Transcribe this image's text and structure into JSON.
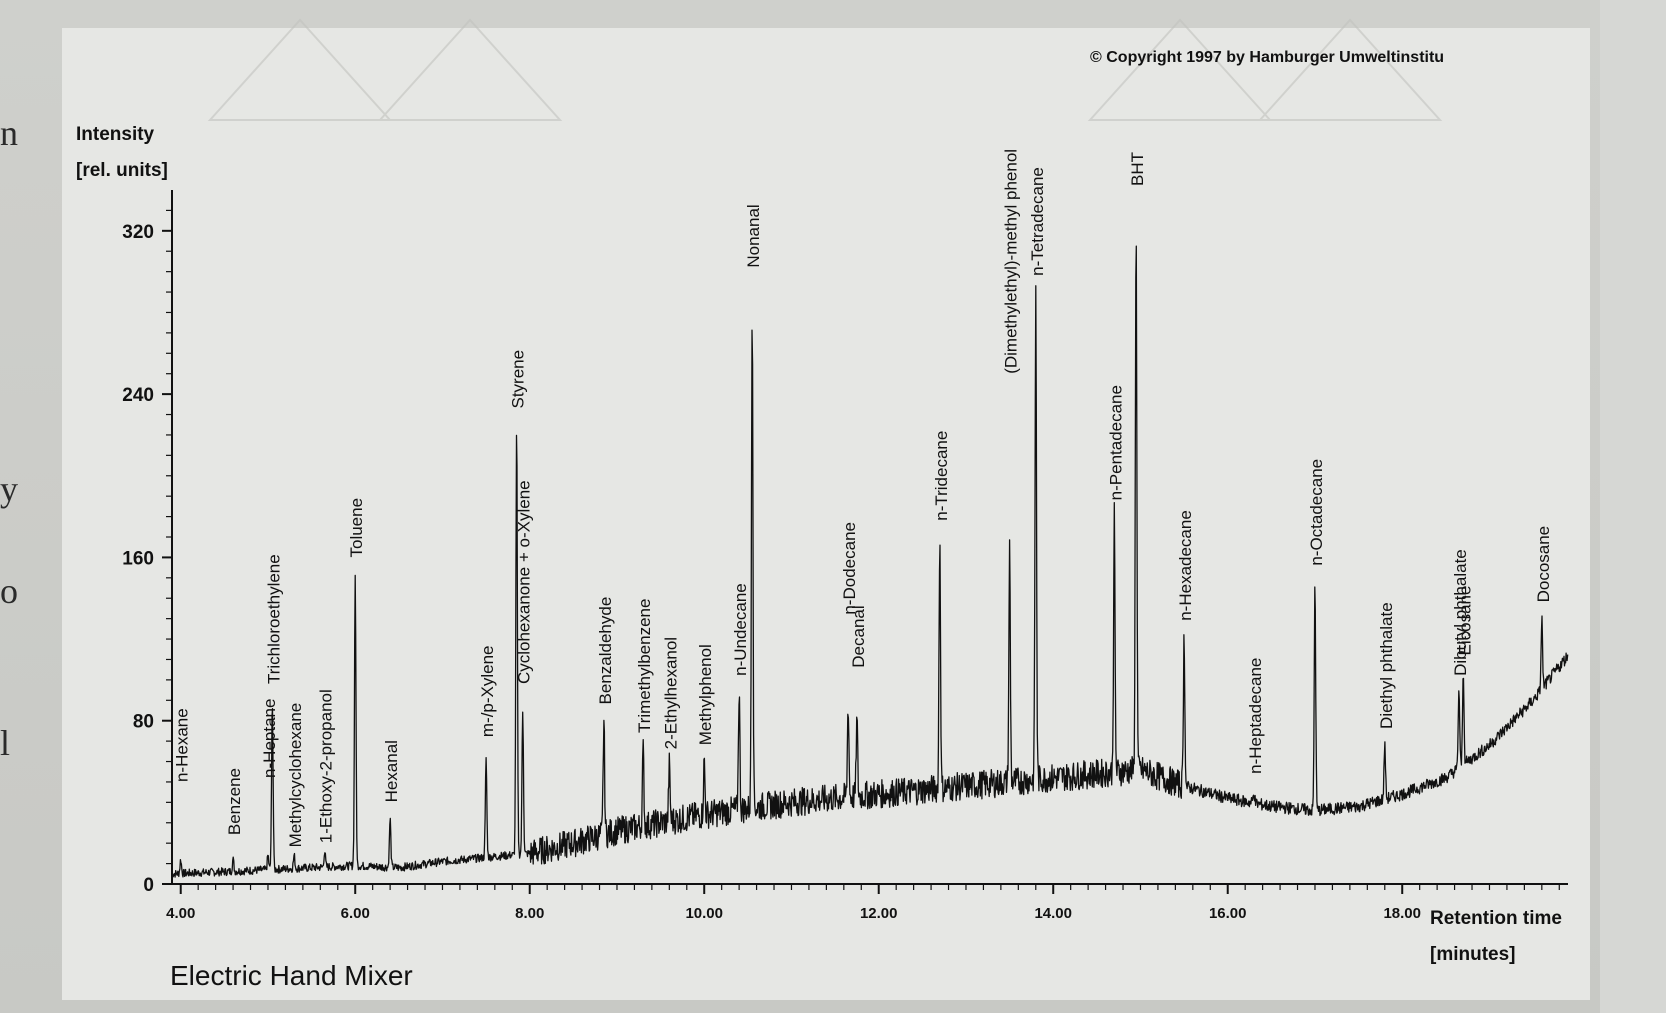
{
  "copyright": "© Copyright 1997 by Hamburger Umweltinstitu",
  "caption": "Electric Hand Mixer",
  "left_edge_chars": [
    "n",
    "y",
    "o",
    "l"
  ],
  "colors": {
    "ink": "#111111",
    "panel": "#e6e7e4",
    "page": "#c9cac7"
  },
  "chart_data": {
    "type": "line",
    "title": "",
    "ylabel": "Intensity",
    "ylabel_unit": "[rel. units]",
    "xlabel": "Retention time",
    "xlabel_unit": "[minutes]",
    "xlim": [
      3.9,
      19.9
    ],
    "ylim": [
      0,
      340
    ],
    "x_ticks": [
      "4.00",
      "6.00",
      "8.00",
      "10.00",
      "12.00",
      "14.00",
      "16.00",
      "18.00"
    ],
    "y_ticks": [
      "0",
      "80",
      "160",
      "240",
      "320"
    ],
    "grid": false,
    "baseline": [
      [
        3.9,
        5
      ],
      [
        4.5,
        6
      ],
      [
        5.0,
        7
      ],
      [
        5.5,
        8
      ],
      [
        6.0,
        9
      ],
      [
        6.5,
        8
      ],
      [
        7.0,
        11
      ],
      [
        7.5,
        13
      ],
      [
        8.0,
        15
      ],
      [
        8.5,
        20
      ],
      [
        9.0,
        26
      ],
      [
        9.5,
        30
      ],
      [
        10.0,
        34
      ],
      [
        10.5,
        37
      ],
      [
        11.0,
        40
      ],
      [
        11.5,
        42
      ],
      [
        12.0,
        44
      ],
      [
        12.5,
        46
      ],
      [
        13.0,
        48
      ],
      [
        13.5,
        50
      ],
      [
        14.0,
        52
      ],
      [
        14.5,
        54
      ],
      [
        15.0,
        56
      ],
      [
        15.5,
        48
      ],
      [
        16.0,
        42
      ],
      [
        16.5,
        38
      ],
      [
        17.0,
        36
      ],
      [
        17.5,
        38
      ],
      [
        18.0,
        44
      ],
      [
        18.5,
        52
      ],
      [
        19.0,
        68
      ],
      [
        19.5,
        90
      ],
      [
        19.9,
        112
      ]
    ],
    "peaks": [
      {
        "label": "n-Hexane",
        "x": 4.0,
        "y": 12,
        "label_y": 48
      },
      {
        "label": "Benzene",
        "x": 4.6,
        "y": 12,
        "label_y": 22
      },
      {
        "label": "n-Heptane",
        "x": 5.0,
        "y": 14,
        "label_y": 50
      },
      {
        "label": "Trichloroethylene",
        "x": 5.05,
        "y": 90,
        "label_y": 96
      },
      {
        "label": "Methylcyclohexane",
        "x": 5.3,
        "y": 14,
        "label_y": 16
      },
      {
        "label": "1-Ethoxy-2-propanol",
        "x": 5.65,
        "y": 16,
        "label_y": 18
      },
      {
        "label": "Toluene",
        "x": 6.0,
        "y": 152,
        "label_y": 158
      },
      {
        "label": "Hexanal",
        "x": 6.4,
        "y": 32,
        "label_y": 38
      },
      {
        "label": "m-/p-Xylene",
        "x": 7.5,
        "y": 62,
        "label_y": 70
      },
      {
        "label": "Styrene",
        "x": 7.85,
        "y": 225,
        "label_y": 231
      },
      {
        "label": "Cyclohexanone + o-Xylene",
        "x": 7.92,
        "y": 85,
        "label_y": 96
      },
      {
        "label": "Benzaldehyde",
        "x": 8.85,
        "y": 80,
        "label_y": 86
      },
      {
        "label": "Trimethylbenzene",
        "x": 9.3,
        "y": 65,
        "label_y": 72
      },
      {
        "label": "2-Ethylhexanol",
        "x": 9.6,
        "y": 58,
        "label_y": 64
      },
      {
        "label": "Methylphenol",
        "x": 10.0,
        "y": 60,
        "label_y": 66
      },
      {
        "label": "n-Undecane",
        "x": 10.4,
        "y": 95,
        "label_y": 100
      },
      {
        "label": "Nonanal",
        "x": 10.55,
        "y": 285,
        "label_y": 300
      },
      {
        "label": "n-Dodecane",
        "x": 11.65,
        "y": 88,
        "label_y": 130
      },
      {
        "label": "Decanal",
        "x": 11.75,
        "y": 80,
        "label_y": 104
      },
      {
        "label": "n-Tridecane",
        "x": 12.7,
        "y": 170,
        "label_y": 176
      },
      {
        "label": "(Dimethylethyl)-methyl phenol",
        "x": 13.5,
        "y": 165,
        "label_y": 248
      },
      {
        "label": "n-Tetradecane",
        "x": 13.8,
        "y": 290,
        "label_y": 296
      },
      {
        "label": "n-Pentadecane",
        "x": 14.7,
        "y": 180,
        "label_y": 186
      },
      {
        "label": "BHT",
        "x": 14.95,
        "y": 325,
        "label_y": 340
      },
      {
        "label": "n-Hexadecane",
        "x": 15.5,
        "y": 120,
        "label_y": 127
      },
      {
        "label": "n-Heptadecane",
        "x": 16.3,
        "y": 45,
        "label_y": 52
      },
      {
        "label": "n-Octadecane",
        "x": 17.0,
        "y": 148,
        "label_y": 154
      },
      {
        "label": "Diethyl phthalate",
        "x": 17.8,
        "y": 68,
        "label_y": 74
      },
      {
        "label": "Dibutyl phthalate",
        "x": 18.65,
        "y": 95,
        "label_y": 100
      },
      {
        "label": "Eicosane",
        "x": 18.7,
        "y": 104,
        "label_y": 110
      },
      {
        "label": "Docosane",
        "x": 19.6,
        "y": 130,
        "label_y": 136
      }
    ]
  }
}
